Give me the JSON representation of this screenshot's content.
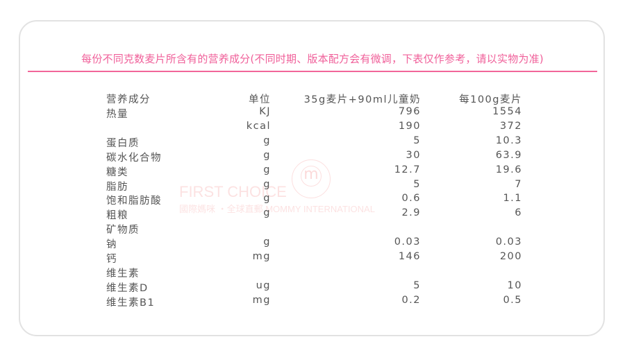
{
  "title": "每份不同克数麦片所含有的营养成分(不同时期、版本配方会有微调，下表仅作参考，请以实物为准)",
  "watermark": {
    "line1": "FIRST CHOICE",
    "line2": "國際媽咪 ・全球直郵 MOMMY INTERNATIONAL"
  },
  "headers": [
    "营养成分",
    "单位",
    "35g麦片+90ml儿童奶",
    "每100g麦片"
  ],
  "rows": [
    [
      "热量",
      "KJ",
      "796",
      "1554"
    ],
    [
      "",
      "kcal",
      "190",
      "372"
    ],
    [
      "蛋白质",
      "g",
      "5",
      "10.3"
    ],
    [
      "碳水化合物",
      "g",
      "30",
      "63.9"
    ],
    [
      "糖类",
      "g",
      "12.7",
      "19.6"
    ],
    [
      "脂肪",
      "g",
      "5",
      "7"
    ],
    [
      "饱和脂肪酸",
      "g",
      "0.6",
      "1.1"
    ],
    [
      "粗粮",
      "g",
      "2.9",
      "6"
    ],
    [
      "矿物质",
      "",
      "",
      ""
    ],
    [
      "钠",
      "g",
      "0.03",
      "0.03"
    ],
    [
      "钙",
      "mg",
      "146",
      "200"
    ],
    [
      "维生素",
      "",
      "",
      ""
    ],
    [
      "维生素D",
      "ug",
      "5",
      "10"
    ],
    [
      "维生素B1",
      "mg",
      "0.2",
      "0.5"
    ]
  ],
  "colors": {
    "accent": "#f0609a",
    "text": "#555555"
  }
}
